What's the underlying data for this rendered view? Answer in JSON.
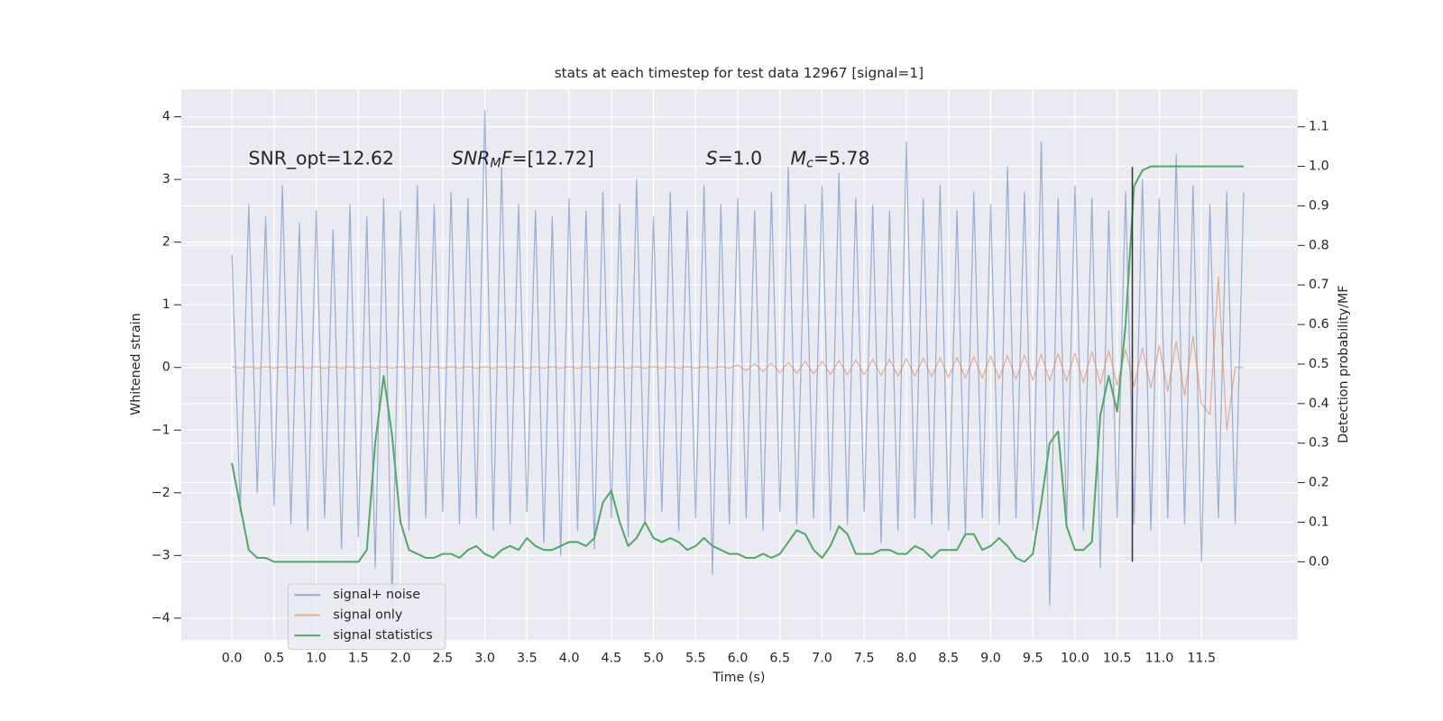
{
  "chart_data": {
    "type": "line",
    "title": "stats at each timestep for test data 12967 [signal=1]",
    "x_label": "Time (s)",
    "y_label": "Whitened strain",
    "y2_label": "Detection probability/MF",
    "xlim": [
      -0.6,
      12.64
    ],
    "ylim": [
      -4.35,
      4.44
    ],
    "y2lim": [
      -0.198,
      1.195
    ],
    "grid": true,
    "legend": "lower left",
    "xticks": [
      {
        "value": 0,
        "label": "0.0"
      },
      0.5,
      {
        "value": 1,
        "label": "1.0"
      },
      1.5,
      {
        "value": 2,
        "label": "2.0"
      },
      2.5,
      {
        "value": 3,
        "label": "3.0"
      },
      3.5,
      {
        "value": 4,
        "label": "4.0"
      },
      4.5,
      {
        "value": 5,
        "label": "5.0"
      },
      5.5,
      {
        "value": 6,
        "label": "6.0"
      },
      6.5,
      {
        "value": 7,
        "label": "7.0"
      },
      7.5,
      {
        "value": 8,
        "label": "8.0"
      },
      8.5,
      {
        "value": 9,
        "label": "9.0"
      },
      9.5,
      {
        "value": 10,
        "label": "10.0"
      },
      10.5,
      {
        "value": 11,
        "label": "11.0"
      },
      11.5
    ],
    "yticks": [
      {
        "value": -4,
        "label": "−4"
      },
      {
        "value": -3,
        "label": "−3"
      },
      {
        "value": -2,
        "label": "−2"
      },
      {
        "value": -1,
        "label": "−1"
      },
      0,
      1,
      2,
      3,
      4
    ],
    "y2ticks": [
      {
        "value": 0,
        "label": "0.0"
      },
      0.1,
      0.2,
      0.3,
      0.4,
      0.5,
      0.6,
      0.7,
      0.8,
      0.9,
      {
        "value": 1,
        "label": "1.0"
      },
      1.1
    ],
    "annotations": [
      [
        {
          "text": "SNR_opt=12.62"
        }
      ],
      [
        {
          "text": "SNR",
          "italic": true
        },
        {
          "text": "M",
          "italic": true,
          "sub": true
        },
        {
          "text": "F",
          "italic": true
        },
        {
          "text": "=[12.72]"
        }
      ],
      [
        {
          "text": "S",
          "italic": true
        },
        {
          "text": "=1.0"
        }
      ],
      [
        {
          "text": "M",
          "italic": true
        },
        {
          "text": "c",
          "italic": true,
          "sub": true
        },
        {
          "text": "=5.78"
        }
      ]
    ],
    "marker_line": {
      "x": 10.68,
      "ymin": -3.1,
      "ymax": 3.2,
      "color": "#333333"
    },
    "x": [
      0.0,
      0.1,
      0.2,
      0.3,
      0.4,
      0.5,
      0.6,
      0.7,
      0.8,
      0.9,
      1.0,
      1.1,
      1.2,
      1.3,
      1.4,
      1.5,
      1.6,
      1.7,
      1.8,
      1.9,
      2.0,
      2.1,
      2.2,
      2.3,
      2.4,
      2.5,
      2.6,
      2.7,
      2.8,
      2.9,
      3.0,
      3.1,
      3.2,
      3.3,
      3.4,
      3.5,
      3.6,
      3.7,
      3.8,
      3.9,
      4.0,
      4.1,
      4.2,
      4.3,
      4.4,
      4.5,
      4.6,
      4.7,
      4.8,
      4.9,
      5.0,
      5.1,
      5.2,
      5.3,
      5.4,
      5.5,
      5.6,
      5.7,
      5.8,
      5.9,
      6.0,
      6.1,
      6.2,
      6.3,
      6.4,
      6.5,
      6.6,
      6.7,
      6.8,
      6.9,
      7.0,
      7.1,
      7.2,
      7.3,
      7.4,
      7.5,
      7.6,
      7.7,
      7.8,
      7.9,
      8.0,
      8.1,
      8.2,
      8.3,
      8.4,
      8.5,
      8.6,
      8.7,
      8.8,
      8.9,
      9.0,
      9.1,
      9.2,
      9.3,
      9.4,
      9.5,
      9.6,
      9.7,
      9.8,
      9.9,
      10.0,
      10.1,
      10.2,
      10.3,
      10.4,
      10.5,
      10.6,
      10.7,
      10.8,
      10.9,
      11.0,
      11.1,
      11.2,
      11.3,
      11.4,
      11.5,
      11.6,
      11.7,
      11.8,
      11.9,
      12.0
    ],
    "series": [
      {
        "name": "signal+ noise",
        "color": "#4c72b0",
        "alpha": 0.5,
        "axis": "y",
        "values": [
          1.8,
          -2.3,
          2.6,
          -2.0,
          2.4,
          -2.2,
          2.9,
          -2.5,
          2.3,
          -2.6,
          2.5,
          -2.4,
          2.2,
          -2.9,
          2.6,
          -2.7,
          2.4,
          -3.2,
          2.7,
          -3.8,
          2.5,
          -2.6,
          2.9,
          -2.4,
          2.6,
          -2.3,
          2.8,
          -2.5,
          2.7,
          -2.4,
          4.1,
          -2.6,
          3.2,
          -2.5,
          2.6,
          -2.3,
          2.5,
          -2.8,
          2.4,
          -3.0,
          2.7,
          -2.6,
          2.5,
          -2.9,
          2.8,
          -2.4,
          2.6,
          -2.7,
          3.0,
          -2.5,
          2.4,
          -2.3,
          2.8,
          -2.6,
          2.5,
          -2.4,
          2.9,
          -3.3,
          2.6,
          -2.5,
          2.7,
          -2.4,
          2.5,
          -2.6,
          2.8,
          -2.3,
          3.2,
          -2.5,
          2.6,
          -2.4,
          2.9,
          -2.6,
          3.1,
          -2.5,
          2.7,
          -2.3,
          2.6,
          -2.8,
          2.5,
          -2.6,
          3.6,
          -2.4,
          2.7,
          -2.5,
          2.9,
          -2.6,
          2.5,
          -2.7,
          2.8,
          -2.4,
          2.6,
          -2.5,
          3.2,
          -2.4,
          2.8,
          -2.6,
          3.6,
          -3.8,
          2.7,
          -2.5,
          2.9,
          -2.6,
          2.7,
          -3.2,
          2.5,
          -2.4,
          2.8,
          -2.5,
          3.0,
          -2.6,
          2.7,
          -2.4,
          3.4,
          -2.5,
          2.9,
          -3.1,
          2.6,
          -2.4,
          2.8,
          -2.5,
          2.8
        ]
      },
      {
        "name": "signal only",
        "color": "#dd8452",
        "alpha": 0.6,
        "axis": "y",
        "values": [
          0.01,
          -0.01,
          0.01,
          -0.01,
          0.01,
          -0.01,
          0.01,
          -0.01,
          0.01,
          -0.01,
          0.01,
          -0.01,
          0.01,
          -0.01,
          0.01,
          -0.01,
          0.01,
          -0.01,
          0.01,
          -0.01,
          0.01,
          -0.01,
          0.01,
          -0.01,
          0.01,
          -0.01,
          0.01,
          -0.01,
          0.01,
          -0.01,
          0.01,
          -0.01,
          0.01,
          -0.01,
          0.01,
          -0.01,
          0.01,
          -0.01,
          0.01,
          -0.01,
          0.01,
          -0.01,
          0.01,
          -0.01,
          0.01,
          -0.01,
          0.01,
          -0.01,
          0.01,
          -0.01,
          0.01,
          -0.01,
          0.01,
          -0.01,
          0.01,
          -0.01,
          0.01,
          -0.01,
          0.01,
          -0.01,
          0.04,
          -0.05,
          0.06,
          -0.06,
          0.07,
          -0.08,
          0.08,
          -0.09,
          0.1,
          -0.1,
          0.1,
          -0.11,
          0.11,
          -0.12,
          0.12,
          -0.12,
          0.13,
          -0.13,
          0.13,
          -0.14,
          0.14,
          -0.14,
          0.15,
          -0.15,
          0.15,
          -0.16,
          0.16,
          -0.17,
          0.17,
          -0.17,
          0.18,
          -0.18,
          0.19,
          -0.19,
          0.2,
          -0.2,
          0.21,
          -0.21,
          0.22,
          -0.22,
          0.23,
          -0.24,
          0.25,
          -0.26,
          0.27,
          -0.28,
          0.29,
          -0.3,
          0.31,
          -0.33,
          0.35,
          -0.38,
          0.41,
          -0.45,
          0.5,
          -0.58,
          -0.75,
          1.45,
          -1.0,
          0.0,
          0.0
        ]
      },
      {
        "name": "signal statistics",
        "color": "#55a868",
        "alpha": 1,
        "axis": "y2",
        "values": [
          0.25,
          0.14,
          0.03,
          0.01,
          0.01,
          0.0,
          0.0,
          0.0,
          0.0,
          0.0,
          0.0,
          0.0,
          0.0,
          0.0,
          0.0,
          0.0,
          0.03,
          0.3,
          0.47,
          0.32,
          0.1,
          0.03,
          0.02,
          0.01,
          0.01,
          0.02,
          0.02,
          0.01,
          0.03,
          0.04,
          0.02,
          0.01,
          0.03,
          0.04,
          0.03,
          0.06,
          0.04,
          0.03,
          0.03,
          0.04,
          0.05,
          0.05,
          0.04,
          0.06,
          0.15,
          0.18,
          0.1,
          0.04,
          0.06,
          0.1,
          0.06,
          0.05,
          0.06,
          0.05,
          0.03,
          0.04,
          0.06,
          0.04,
          0.03,
          0.02,
          0.02,
          0.01,
          0.01,
          0.02,
          0.01,
          0.02,
          0.05,
          0.08,
          0.07,
          0.03,
          0.01,
          0.04,
          0.09,
          0.07,
          0.02,
          0.02,
          0.02,
          0.03,
          0.03,
          0.02,
          0.02,
          0.04,
          0.03,
          0.01,
          0.03,
          0.03,
          0.03,
          0.07,
          0.07,
          0.03,
          0.04,
          0.06,
          0.04,
          0.01,
          0.0,
          0.02,
          0.15,
          0.3,
          0.33,
          0.09,
          0.03,
          0.03,
          0.05,
          0.37,
          0.47,
          0.38,
          0.6,
          0.95,
          0.99,
          1.0,
          1.0,
          1.0,
          1.0,
          1.0,
          1.0,
          1.0,
          1.0,
          1.0,
          1.0,
          1.0,
          1.0
        ]
      }
    ]
  }
}
